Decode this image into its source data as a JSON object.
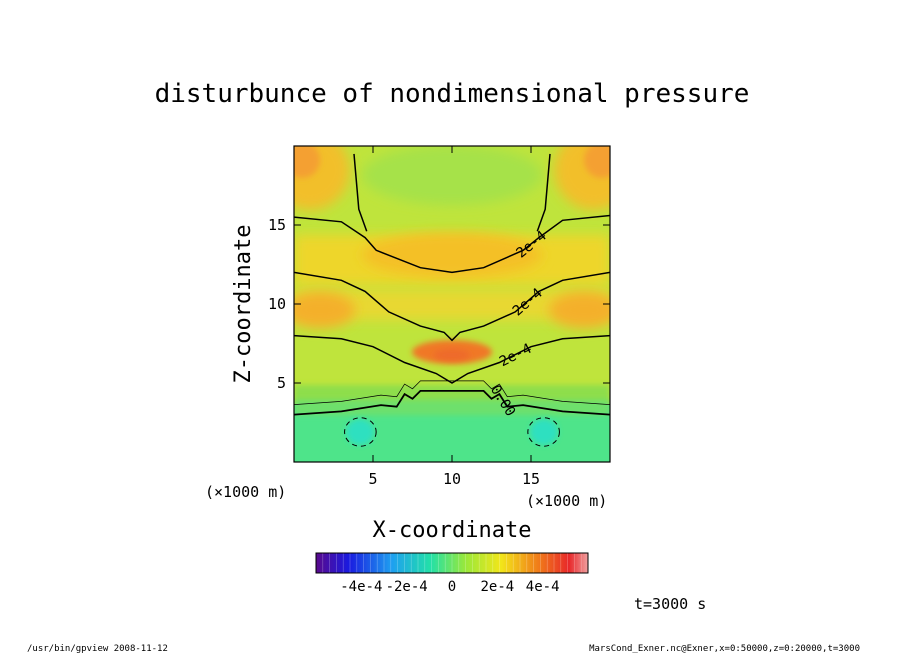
{
  "chart_data": {
    "type": "heatmap",
    "title": "disturbunce of nondimensional pressure",
    "xlabel": "X-coordinate",
    "ylabel": "Z-coordinate",
    "x_unit": "(×1000 m)",
    "y_unit": "(×1000 m)",
    "xlim": [
      0,
      20
    ],
    "ylim": [
      0,
      20
    ],
    "x_ticks": [
      5,
      10,
      15
    ],
    "y_ticks": [
      5,
      10,
      15
    ],
    "colorbar": {
      "range": [
        -0.0006,
        0.0006
      ],
      "tick_values": [
        -0.0004,
        -0.0002,
        0,
        0.0002,
        0.0004
      ],
      "tick_labels": [
        "-4e-4",
        "-2e-4",
        "0",
        "2e-4",
        "4e-4"
      ]
    },
    "contours": [
      {
        "level": 0.0002,
        "label": "2e-4",
        "points": [
          [
            0,
            15.5
          ],
          [
            3,
            15.2
          ],
          [
            4.5,
            14.2
          ],
          [
            5.2,
            13.4
          ],
          [
            8,
            12.3
          ],
          [
            10,
            12
          ],
          [
            12,
            12.3
          ],
          [
            14.5,
            13.4
          ],
          [
            15.5,
            14.2
          ],
          [
            17,
            15.3
          ],
          [
            20,
            15.6
          ]
        ]
      },
      {
        "level": 0.0002,
        "label": "2e-4",
        "points": [
          [
            0,
            12
          ],
          [
            3,
            11.5
          ],
          [
            4.5,
            10.8
          ],
          [
            6,
            9.5
          ],
          [
            8,
            8.6
          ],
          [
            9.5,
            8.2
          ],
          [
            10,
            7.7
          ],
          [
            10.5,
            8.2
          ],
          [
            12,
            8.6
          ],
          [
            14,
            9.5
          ],
          [
            15.5,
            10.8
          ],
          [
            17,
            11.5
          ],
          [
            20,
            12
          ]
        ]
      },
      {
        "level": 0.0002,
        "label": "2e-4",
        "points": [
          [
            0,
            8
          ],
          [
            3,
            7.8
          ],
          [
            5,
            7.3
          ],
          [
            7,
            6.3
          ],
          [
            9,
            5.6
          ],
          [
            10,
            5
          ],
          [
            11,
            5.6
          ],
          [
            13,
            6.3
          ],
          [
            15,
            7.3
          ],
          [
            17,
            7.8
          ],
          [
            20,
            8
          ]
        ]
      },
      {
        "level": 0.0,
        "label": "0.00",
        "points": [
          [
            0,
            3
          ],
          [
            3,
            3.2
          ],
          [
            5.5,
            3.6
          ],
          [
            6.5,
            3.5
          ],
          [
            7,
            4.3
          ],
          [
            7.5,
            4
          ],
          [
            8,
            4.5
          ],
          [
            10,
            4.5
          ],
          [
            12,
            4.5
          ],
          [
            12.5,
            4
          ],
          [
            13,
            4.3
          ],
          [
            13.5,
            3.5
          ],
          [
            14.5,
            3.6
          ],
          [
            17,
            3.2
          ],
          [
            20,
            3
          ]
        ]
      },
      {
        "level": 0.0002,
        "label": "",
        "points": [
          [
            3.8,
            19.5
          ],
          [
            4.1,
            16
          ],
          [
            4.6,
            14.6
          ]
        ]
      },
      {
        "level": 0.0002,
        "label": "",
        "points": [
          [
            16.2,
            19.5
          ],
          [
            15.9,
            16
          ],
          [
            15.4,
            14.6
          ]
        ]
      }
    ],
    "negative_contours": [
      {
        "center": [
          4.2,
          1.9
        ],
        "rx": 1.0,
        "ry": 0.9
      },
      {
        "center": [
          15.8,
          1.9
        ],
        "rx": 1.0,
        "ry": 0.9
      }
    ]
  },
  "annotations": {
    "time": "t=3000 s",
    "footer_left": "/usr/bin/gpview  2008-11-12",
    "footer_right": "MarsCond_Exner.nc@Exner,x=0:50000,z=0:20000,t=3000"
  }
}
